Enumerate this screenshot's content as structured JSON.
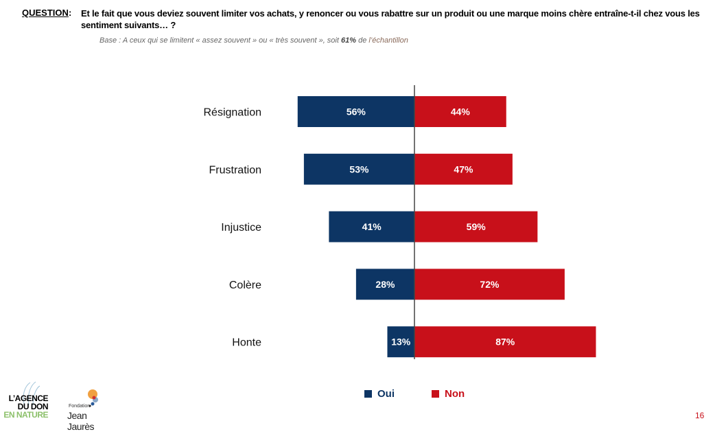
{
  "header": {
    "question_label": "QUESTION",
    "question_colon": ":",
    "question_text": "Et le fait que vous deviez souvent limiter vos achats, y renoncer ou vous rabattre sur un produit ou une marque moins chère entraîne-t-il chez vous les sentiment suivants… ?",
    "base_prefix": "Base : A ceux qui se limitent « assez souvent » ou « très souvent », soit ",
    "base_pct": "61%",
    "base_de": " de ",
    "base_tail": "l’échantillon"
  },
  "colors": {
    "oui": "#0d3564",
    "non": "#c8101a"
  },
  "chart_data": {
    "type": "bar",
    "orientation": "horizontal-diverging",
    "categories": [
      "Résignation",
      "Frustration",
      "Injustice",
      "Colère",
      "Honte"
    ],
    "series": [
      {
        "name": "Oui",
        "values": [
          56,
          53,
          41,
          28,
          13
        ],
        "labels": [
          "56%",
          "53%",
          "41%",
          "28%",
          "13%"
        ]
      },
      {
        "name": "Non",
        "values": [
          44,
          47,
          59,
          72,
          87
        ],
        "labels": [
          "44%",
          "47%",
          "59%",
          "72%",
          "87%"
        ]
      }
    ],
    "legend": "bottom",
    "grid": false
  },
  "legend": {
    "oui": "Oui",
    "non": "Non"
  },
  "logos": {
    "agence": [
      "L’AGENCE",
      "DU DON",
      "EN NATURE"
    ],
    "fondation_small": "Fondation",
    "fondation_big": "Jean Jaurès"
  },
  "page_number": "16"
}
